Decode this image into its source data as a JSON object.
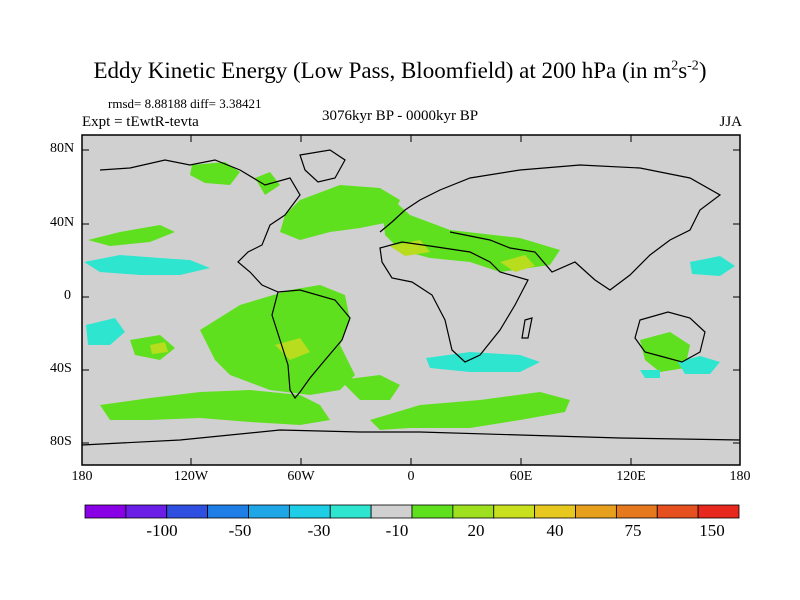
{
  "title": {
    "main": "Eddy Kinetic Energy (Low Pass, Bloomfield) at 200 hPa (in m",
    "sup1": "2",
    "mid": "s",
    "sup2": "-2",
    "end": ")"
  },
  "stats": "rmsd= 8.88188 diff= 3.38421",
  "expt": "Expt = tEwtR-tevta",
  "period": "3076kyr BP - 0000kyr BP",
  "season": "JJA",
  "lat_labels": [
    "80N",
    "40N",
    "0",
    "40S",
    "80S"
  ],
  "lon_labels": [
    "180",
    "120W",
    "60W",
    "0",
    "60E",
    "120E",
    "180"
  ],
  "colorbar": {
    "colors": [
      "#8a00e6",
      "#6a1ee6",
      "#2f4fe0",
      "#1f7ee6",
      "#1ea6e6",
      "#1ecde6",
      "#2ee6cf",
      "#d0d0d0",
      "#5fe01e",
      "#9ee01e",
      "#c8e01e",
      "#e6c81e",
      "#e6a01e",
      "#e6781e",
      "#e6501e",
      "#e6281e"
    ],
    "labels": [
      "-100",
      "-50",
      "-30",
      "-10",
      "20",
      "40",
      "75",
      "150"
    ]
  },
  "colors": {
    "background": "#d0d0d0",
    "green": "#5fe01e",
    "yellowgreen": "#b8dc1e",
    "cyan": "#2ee6cf"
  }
}
